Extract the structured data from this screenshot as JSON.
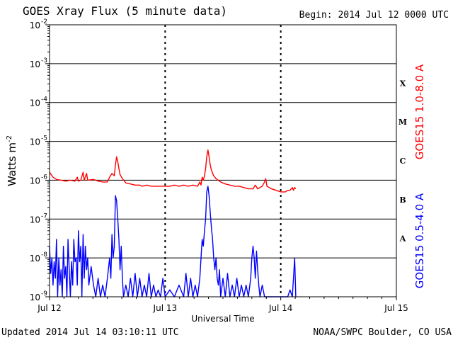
{
  "header": {
    "title": "GOES Xray Flux (5 minute data)",
    "begin": "Begin:  2014 Jul 12 0000 UTC"
  },
  "footer": {
    "updated": "Updated 2014 Jul 14 03:10:11 UTC",
    "credit": "NOAA/SWPC Boulder, CO USA"
  },
  "colors": {
    "long": "#ff0000",
    "short": "#0000ff",
    "grid": "#000000"
  },
  "chart_data": {
    "type": "line",
    "title": "GOES Xray Flux (5 minute data)",
    "xlabel": "Universal Time",
    "ylabel": "Watts m",
    "ylabel_sup": "-2",
    "yscale": "log",
    "ylim": [
      1e-09,
      0.01
    ],
    "xlim_days": [
      0,
      3
    ],
    "x_ticks": [
      {
        "day": 0,
        "label": "Jul 12"
      },
      {
        "day": 1,
        "label": "Jul 13"
      },
      {
        "day": 2,
        "label": "Jul 14"
      },
      {
        "day": 3,
        "label": "Jul 15"
      }
    ],
    "y_ticks": [
      {
        "exp": -2,
        "mant": "10",
        "sup": "-2"
      },
      {
        "exp": -3,
        "mant": "10",
        "sup": "-3"
      },
      {
        "exp": -4,
        "mant": "10",
        "sup": "-4"
      },
      {
        "exp": -5,
        "mant": "10",
        "sup": "-5"
      },
      {
        "exp": -6,
        "mant": "10",
        "sup": "-6"
      },
      {
        "exp": -7,
        "mant": "10",
        "sup": "-7"
      },
      {
        "exp": -8,
        "mant": "10",
        "sup": "-8"
      },
      {
        "exp": -9,
        "mant": "10",
        "sup": "-9"
      }
    ],
    "flare_classes": [
      {
        "label": "X",
        "exp": -3.5
      },
      {
        "label": "M",
        "exp": -4.5
      },
      {
        "label": "C",
        "exp": -5.5
      },
      {
        "label": "B",
        "exp": -6.5
      },
      {
        "label": "A",
        "exp": -7.5
      }
    ],
    "series": [
      {
        "name": "GOES15 1.0-8.0 A",
        "color": "#ff0000",
        "points": [
          [
            0.0,
            1.6e-06
          ],
          [
            0.03,
            1.2e-06
          ],
          [
            0.06,
            1.05e-06
          ],
          [
            0.1,
            1e-06
          ],
          [
            0.14,
            9.5e-07
          ],
          [
            0.18,
            1e-06
          ],
          [
            0.22,
            9.5e-07
          ],
          [
            0.24,
            1.2e-06
          ],
          [
            0.25,
            9.5e-07
          ],
          [
            0.27,
            1e-06
          ],
          [
            0.29,
            1.6e-06
          ],
          [
            0.3,
            1e-06
          ],
          [
            0.32,
            1.5e-06
          ],
          [
            0.33,
            1e-06
          ],
          [
            0.38,
            1.05e-06
          ],
          [
            0.42,
            9.5e-07
          ],
          [
            0.46,
            9e-07
          ],
          [
            0.5,
            9e-07
          ],
          [
            0.52,
            1.2e-06
          ],
          [
            0.54,
            1.5e-06
          ],
          [
            0.56,
            1.3e-06
          ],
          [
            0.57,
            2.5e-06
          ],
          [
            0.58,
            4e-06
          ],
          [
            0.59,
            3e-06
          ],
          [
            0.6,
            2e-06
          ],
          [
            0.61,
            1.4e-06
          ],
          [
            0.63,
            1.1e-06
          ],
          [
            0.66,
            8.5e-07
          ],
          [
            0.7,
            8e-07
          ],
          [
            0.74,
            7.5e-07
          ],
          [
            0.78,
            7.5e-07
          ],
          [
            0.8,
            7e-07
          ],
          [
            0.84,
            7.5e-07
          ],
          [
            0.88,
            7e-07
          ],
          [
            0.92,
            7e-07
          ],
          [
            0.96,
            7e-07
          ],
          [
            1.0,
            7e-07
          ],
          [
            1.04,
            7e-07
          ],
          [
            1.08,
            7.5e-07
          ],
          [
            1.12,
            7e-07
          ],
          [
            1.16,
            7.5e-07
          ],
          [
            1.2,
            7e-07
          ],
          [
            1.24,
            7.5e-07
          ],
          [
            1.28,
            7e-07
          ],
          [
            1.3,
            9e-07
          ],
          [
            1.31,
            7.5e-07
          ],
          [
            1.32,
            1.2e-06
          ],
          [
            1.33,
            1e-06
          ],
          [
            1.34,
            1.3e-06
          ],
          [
            1.35,
            2e-06
          ],
          [
            1.36,
            4e-06
          ],
          [
            1.37,
            6e-06
          ],
          [
            1.38,
            4e-06
          ],
          [
            1.39,
            2.5e-06
          ],
          [
            1.4,
            1.8e-06
          ],
          [
            1.42,
            1.3e-06
          ],
          [
            1.44,
            1.1e-06
          ],
          [
            1.48,
            9e-07
          ],
          [
            1.52,
            8e-07
          ],
          [
            1.56,
            7.5e-07
          ],
          [
            1.6,
            7e-07
          ],
          [
            1.64,
            7e-07
          ],
          [
            1.68,
            6.5e-07
          ],
          [
            1.72,
            6e-07
          ],
          [
            1.76,
            6e-07
          ],
          [
            1.78,
            7.5e-07
          ],
          [
            1.8,
            6e-07
          ],
          [
            1.84,
            7e-07
          ],
          [
            1.86,
            9e-07
          ],
          [
            1.87,
            1.1e-06
          ],
          [
            1.88,
            7e-07
          ],
          [
            1.9,
            6.5e-07
          ],
          [
            1.92,
            6e-07
          ],
          [
            1.96,
            5.5e-07
          ],
          [
            2.0,
            5e-07
          ],
          [
            2.04,
            5e-07
          ],
          [
            2.06,
            5.5e-07
          ],
          [
            2.08,
            5.5e-07
          ],
          [
            2.1,
            6.5e-07
          ],
          [
            2.11,
            5.5e-07
          ],
          [
            2.12,
            6.5e-07
          ],
          [
            2.13,
            6e-07
          ]
        ]
      },
      {
        "name": "GOES15 0.5-4.0 A",
        "color": "#0000ff",
        "points": [
          [
            0.0,
            2e-08
          ],
          [
            0.01,
            4e-09
          ],
          [
            0.02,
            1e-08
          ],
          [
            0.03,
            2e-09
          ],
          [
            0.04,
            8e-09
          ],
          [
            0.05,
            3e-09
          ],
          [
            0.06,
            3e-08
          ],
          [
            0.07,
            1e-09
          ],
          [
            0.08,
            1e-08
          ],
          [
            0.09,
            2e-09
          ],
          [
            0.1,
            5e-09
          ],
          [
            0.11,
            1e-09
          ],
          [
            0.12,
            2e-08
          ],
          [
            0.13,
            3e-09
          ],
          [
            0.14,
            6e-09
          ],
          [
            0.15,
            1e-09
          ],
          [
            0.16,
            3e-08
          ],
          [
            0.17,
            5e-09
          ],
          [
            0.18,
            1e-09
          ],
          [
            0.19,
            8e-09
          ],
          [
            0.2,
            2e-09
          ],
          [
            0.21,
            3e-08
          ],
          [
            0.22,
            8e-09
          ],
          [
            0.23,
            1e-08
          ],
          [
            0.24,
            2e-09
          ],
          [
            0.25,
            5e-08
          ],
          [
            0.26,
            8e-09
          ],
          [
            0.27,
            2e-08
          ],
          [
            0.28,
            1e-09
          ],
          [
            0.29,
            4e-08
          ],
          [
            0.3,
            3e-09
          ],
          [
            0.31,
            2e-08
          ],
          [
            0.32,
            5e-09
          ],
          [
            0.33,
            1e-08
          ],
          [
            0.34,
            2e-09
          ],
          [
            0.36,
            6e-09
          ],
          [
            0.38,
            2e-09
          ],
          [
            0.4,
            1e-09
          ],
          [
            0.42,
            3e-09
          ],
          [
            0.44,
            1e-09
          ],
          [
            0.46,
            2e-09
          ],
          [
            0.48,
            1e-09
          ],
          [
            0.5,
            3e-09
          ],
          [
            0.52,
            1e-08
          ],
          [
            0.53,
            3e-09
          ],
          [
            0.54,
            4e-08
          ],
          [
            0.55,
            1e-08
          ],
          [
            0.56,
            2e-08
          ],
          [
            0.57,
            4e-07
          ],
          [
            0.58,
            3e-07
          ],
          [
            0.59,
            1e-07
          ],
          [
            0.6,
            3e-08
          ],
          [
            0.61,
            5e-09
          ],
          [
            0.62,
            2e-08
          ],
          [
            0.63,
            3e-09
          ],
          [
            0.64,
            1e-09
          ],
          [
            0.66,
            2e-09
          ],
          [
            0.68,
            1e-09
          ],
          [
            0.7,
            3e-09
          ],
          [
            0.72,
            1e-09
          ],
          [
            0.74,
            4e-09
          ],
          [
            0.76,
            1e-09
          ],
          [
            0.78,
            3e-09
          ],
          [
            0.8,
            1e-09
          ],
          [
            0.82,
            2e-09
          ],
          [
            0.84,
            1e-09
          ],
          [
            0.86,
            4e-09
          ],
          [
            0.88,
            1e-09
          ],
          [
            0.9,
            2e-09
          ],
          [
            0.92,
            1e-09
          ],
          [
            0.94,
            1.5e-09
          ],
          [
            0.96,
            1e-09
          ],
          [
            0.98,
            3e-09
          ],
          [
            1.0,
            1e-09
          ],
          [
            1.04,
            1.5e-09
          ],
          [
            1.08,
            1e-09
          ],
          [
            1.12,
            2e-09
          ],
          [
            1.16,
            1e-09
          ],
          [
            1.18,
            4e-09
          ],
          [
            1.2,
            1e-09
          ],
          [
            1.22,
            3e-09
          ],
          [
            1.24,
            1e-09
          ],
          [
            1.26,
            2e-09
          ],
          [
            1.28,
            1e-09
          ],
          [
            1.3,
            3e-09
          ],
          [
            1.31,
            1e-08
          ],
          [
            1.32,
            3e-08
          ],
          [
            1.33,
            2e-08
          ],
          [
            1.34,
            5e-08
          ],
          [
            1.35,
            1e-07
          ],
          [
            1.36,
            5e-07
          ],
          [
            1.37,
            7e-07
          ],
          [
            1.38,
            4e-07
          ],
          [
            1.39,
            1.5e-07
          ],
          [
            1.4,
            6e-08
          ],
          [
            1.41,
            3e-08
          ],
          [
            1.42,
            1e-08
          ],
          [
            1.43,
            5e-09
          ],
          [
            1.44,
            1e-08
          ],
          [
            1.45,
            3e-09
          ],
          [
            1.46,
            2e-09
          ],
          [
            1.47,
            5e-09
          ],
          [
            1.48,
            1e-09
          ],
          [
            1.5,
            3e-09
          ],
          [
            1.52,
            1e-09
          ],
          [
            1.54,
            4e-09
          ],
          [
            1.56,
            1e-09
          ],
          [
            1.58,
            2e-09
          ],
          [
            1.6,
            1e-09
          ],
          [
            1.62,
            3e-09
          ],
          [
            1.64,
            1e-09
          ],
          [
            1.66,
            2e-09
          ],
          [
            1.68,
            1e-09
          ],
          [
            1.7,
            2e-09
          ],
          [
            1.72,
            1e-09
          ],
          [
            1.74,
            3e-09
          ],
          [
            1.75,
            1e-08
          ],
          [
            1.76,
            2e-08
          ],
          [
            1.77,
            1e-08
          ],
          [
            1.78,
            3e-09
          ],
          [
            1.79,
            1.5e-08
          ],
          [
            1.8,
            5e-09
          ],
          [
            1.81,
            2e-09
          ],
          [
            1.82,
            1e-09
          ],
          [
            1.84,
            2e-09
          ],
          [
            1.86,
            1e-09
          ],
          [
            1.88,
            1e-09
          ],
          [
            1.9,
            1e-09
          ],
          [
            1.92,
            1e-09
          ],
          [
            1.94,
            1e-09
          ],
          [
            1.96,
            1e-09
          ],
          [
            1.98,
            1e-09
          ],
          [
            2.0,
            1e-09
          ],
          [
            2.02,
            1e-09
          ],
          [
            2.04,
            1e-09
          ],
          [
            2.06,
            1e-09
          ],
          [
            2.08,
            1.5e-09
          ],
          [
            2.1,
            1e-09
          ],
          [
            2.11,
            3e-09
          ],
          [
            2.12,
            1e-08
          ],
          [
            2.13,
            1e-09
          ]
        ]
      }
    ]
  }
}
